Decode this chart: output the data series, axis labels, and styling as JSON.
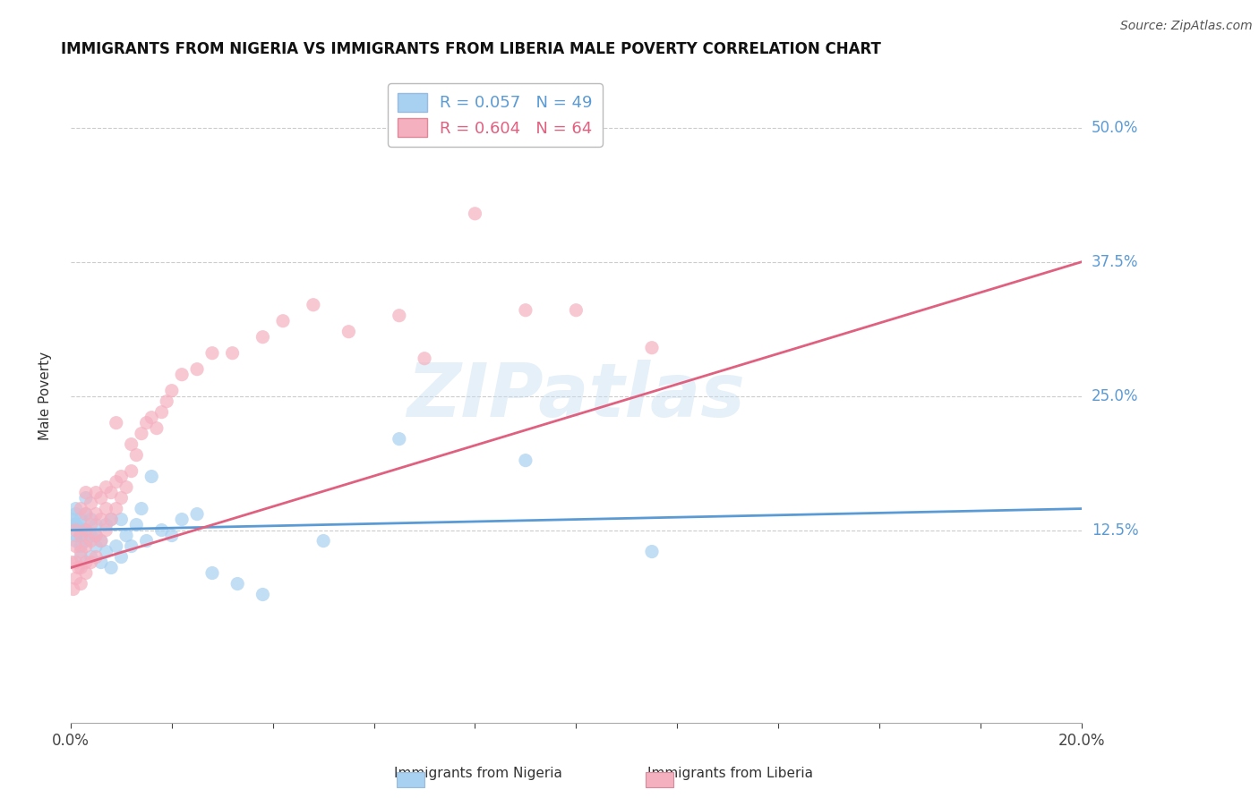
{
  "title": "IMMIGRANTS FROM NIGERIA VS IMMIGRANTS FROM LIBERIA MALE POVERTY CORRELATION CHART",
  "source": "Source: ZipAtlas.com",
  "ylabel": "Male Poverty",
  "xlim": [
    0.0,
    0.2
  ],
  "ylim": [
    -0.055,
    0.555
  ],
  "yticks": [
    0.125,
    0.25,
    0.375,
    0.5
  ],
  "ytick_labels": [
    "12.5%",
    "25.0%",
    "37.5%",
    "50.0%"
  ],
  "xtick_labels_show": [
    "0.0%",
    "20.0%"
  ],
  "xtick_positions_show": [
    0.0,
    0.2
  ],
  "nigeria_color": "#a8d0f0",
  "liberia_color": "#f5b0c0",
  "nigeria_line_color": "#5b9bd5",
  "liberia_line_color": "#e06080",
  "nigeria_R": 0.057,
  "nigeria_N": 49,
  "liberia_R": 0.604,
  "liberia_N": 64,
  "watermark": "ZIPatlas",
  "nigeria_scatter_x": [
    0.0003,
    0.0005,
    0.001,
    0.001,
    0.001,
    0.001,
    0.001,
    0.0015,
    0.002,
    0.002,
    0.002,
    0.002,
    0.002,
    0.003,
    0.003,
    0.003,
    0.003,
    0.004,
    0.004,
    0.004,
    0.005,
    0.005,
    0.005,
    0.006,
    0.006,
    0.007,
    0.007,
    0.008,
    0.008,
    0.009,
    0.01,
    0.01,
    0.011,
    0.012,
    0.013,
    0.014,
    0.015,
    0.016,
    0.018,
    0.02,
    0.022,
    0.025,
    0.028,
    0.033,
    0.038,
    0.05,
    0.065,
    0.09,
    0.115
  ],
  "nigeria_scatter_y": [
    0.135,
    0.13,
    0.12,
    0.13,
    0.14,
    0.115,
    0.145,
    0.13,
    0.11,
    0.12,
    0.135,
    0.125,
    0.1,
    0.115,
    0.125,
    0.14,
    0.155,
    0.12,
    0.135,
    0.1,
    0.11,
    0.12,
    0.13,
    0.095,
    0.115,
    0.105,
    0.13,
    0.09,
    0.135,
    0.11,
    0.1,
    0.135,
    0.12,
    0.11,
    0.13,
    0.145,
    0.115,
    0.175,
    0.125,
    0.12,
    0.135,
    0.14,
    0.085,
    0.075,
    0.065,
    0.115,
    0.21,
    0.19,
    0.105
  ],
  "liberia_scatter_x": [
    0.0002,
    0.0005,
    0.001,
    0.001,
    0.001,
    0.001,
    0.0015,
    0.002,
    0.002,
    0.002,
    0.002,
    0.002,
    0.003,
    0.003,
    0.003,
    0.003,
    0.003,
    0.003,
    0.004,
    0.004,
    0.004,
    0.004,
    0.005,
    0.005,
    0.005,
    0.005,
    0.006,
    0.006,
    0.006,
    0.007,
    0.007,
    0.007,
    0.008,
    0.008,
    0.009,
    0.009,
    0.009,
    0.01,
    0.01,
    0.011,
    0.012,
    0.012,
    0.013,
    0.014,
    0.015,
    0.016,
    0.017,
    0.018,
    0.019,
    0.02,
    0.022,
    0.025,
    0.028,
    0.032,
    0.038,
    0.042,
    0.048,
    0.055,
    0.065,
    0.07,
    0.08,
    0.09,
    0.1,
    0.115
  ],
  "liberia_scatter_y": [
    0.095,
    0.07,
    0.08,
    0.095,
    0.11,
    0.125,
    0.09,
    0.075,
    0.09,
    0.105,
    0.12,
    0.145,
    0.085,
    0.095,
    0.11,
    0.125,
    0.14,
    0.16,
    0.095,
    0.115,
    0.13,
    0.15,
    0.1,
    0.12,
    0.14,
    0.16,
    0.115,
    0.135,
    0.155,
    0.125,
    0.145,
    0.165,
    0.135,
    0.16,
    0.145,
    0.17,
    0.225,
    0.155,
    0.175,
    0.165,
    0.18,
    0.205,
    0.195,
    0.215,
    0.225,
    0.23,
    0.22,
    0.235,
    0.245,
    0.255,
    0.27,
    0.275,
    0.29,
    0.29,
    0.305,
    0.32,
    0.335,
    0.31,
    0.325,
    0.285,
    0.42,
    0.33,
    0.33,
    0.295
  ],
  "nigeria_trend_x": [
    0.0,
    0.2
  ],
  "nigeria_trend_y": [
    0.125,
    0.145
  ],
  "liberia_trend_x": [
    0.0,
    0.2
  ],
  "liberia_trend_y": [
    0.09,
    0.375
  ]
}
